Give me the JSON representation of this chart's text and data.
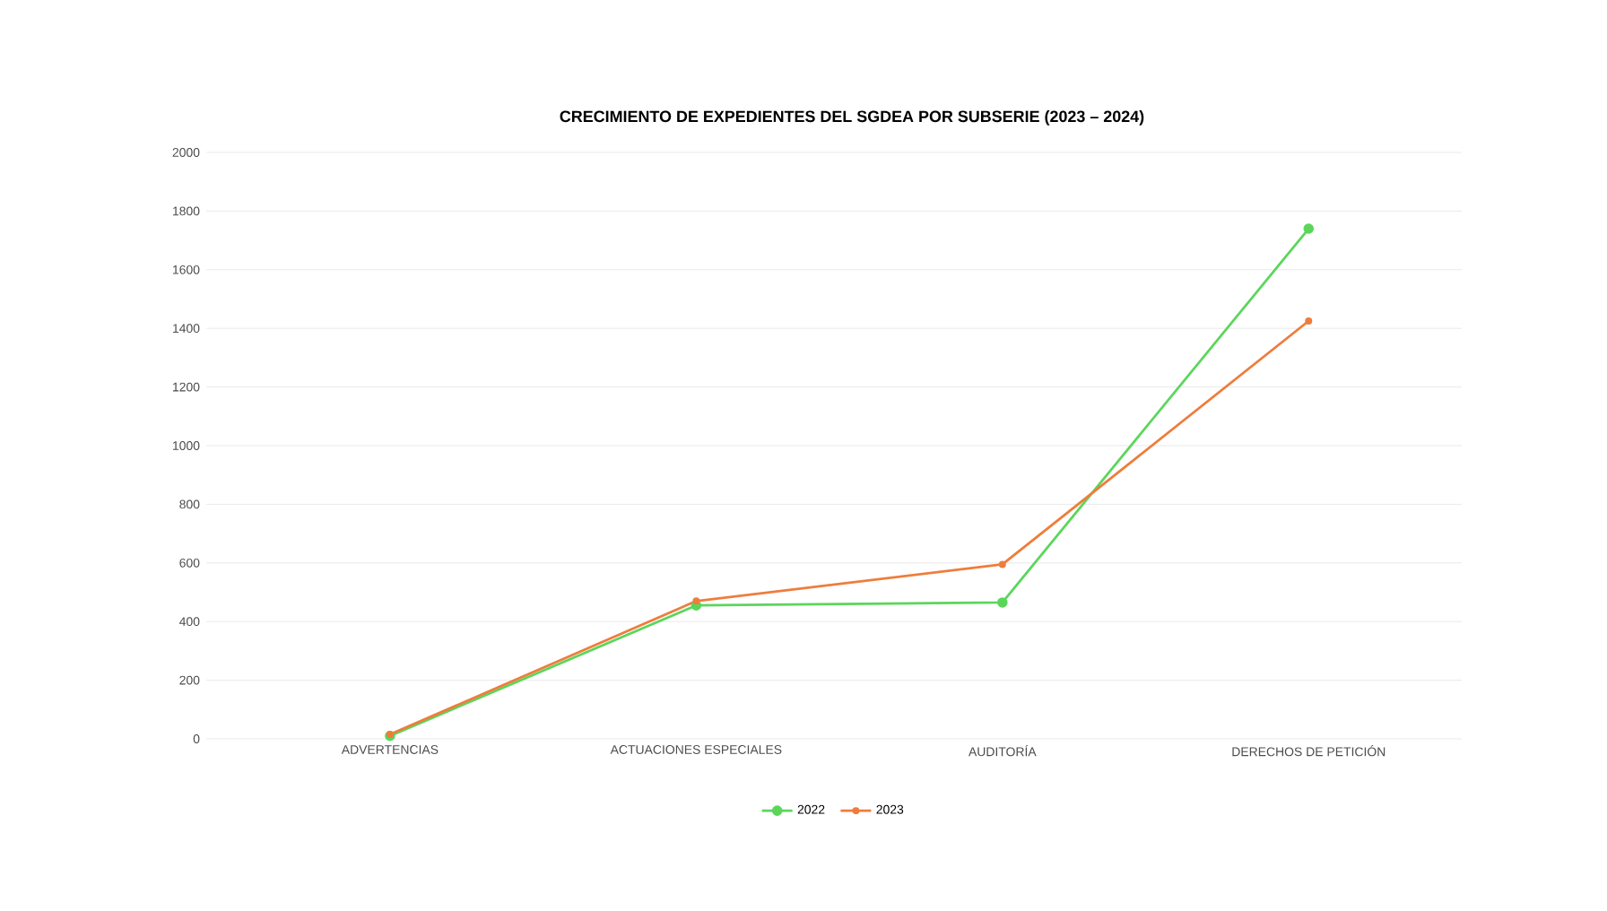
{
  "chart_data": {
    "type": "line",
    "title": "CRECIMIENTO DE EXPEDIENTES DEL SGDEA POR SUBSERIE (2023 – 2024)",
    "categories": [
      "ADVERTENCIAS",
      "ACTUACIONES ESPECIALES",
      "AUDITORÍA",
      "DERECHOS DE PETICIÓN"
    ],
    "series": [
      {
        "name": "2022",
        "color": "#5bd65b",
        "values": [
          10,
          455,
          465,
          1740
        ]
      },
      {
        "name": "2023",
        "color": "#ee7d3c",
        "values": [
          15,
          470,
          595,
          1425
        ]
      }
    ],
    "ylim": [
      0,
      2000
    ],
    "yticks": [
      0,
      200,
      400,
      600,
      800,
      1000,
      1200,
      1400,
      1600,
      1800,
      2000
    ],
    "grid": "y",
    "legend": "bottom",
    "marker": "circle",
    "line_style": "solid"
  }
}
